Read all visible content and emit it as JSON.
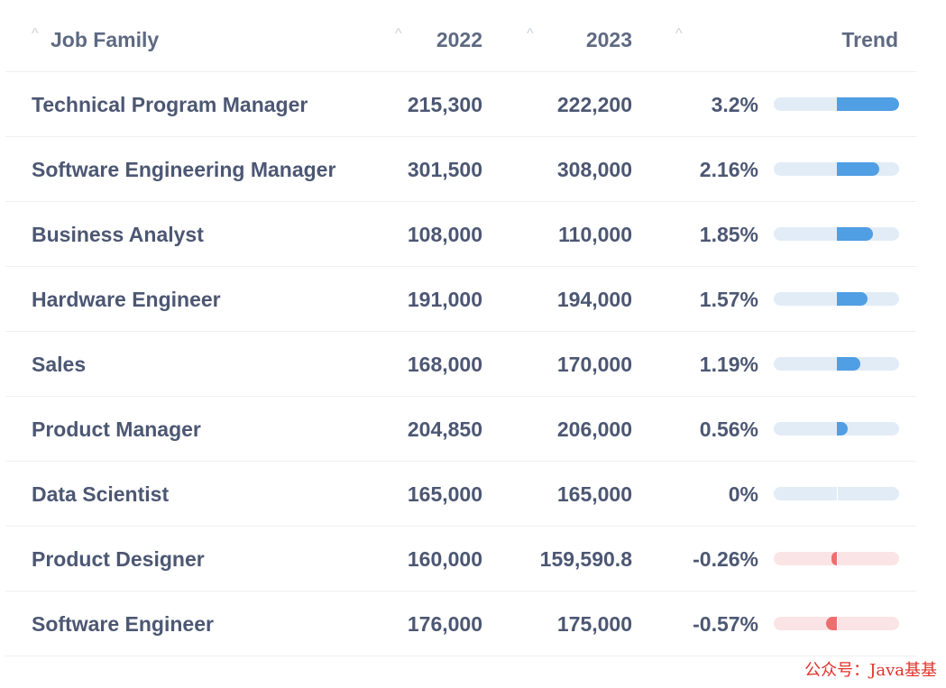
{
  "table": {
    "columns": {
      "job_family": "Job Family",
      "y2022": "2022",
      "y2023": "2023",
      "trend": "Trend"
    },
    "rows": [
      {
        "job": "Technical Program Manager",
        "v2022": "215,300",
        "v2023": "222,200",
        "pct": "3.2%",
        "trend": 3.2
      },
      {
        "job": "Software Engineering Manager",
        "v2022": "301,500",
        "v2023": "308,000",
        "pct": "2.16%",
        "trend": 2.16
      },
      {
        "job": "Business Analyst",
        "v2022": "108,000",
        "v2023": "110,000",
        "pct": "1.85%",
        "trend": 1.85
      },
      {
        "job": "Hardware Engineer",
        "v2022": "191,000",
        "v2023": "194,000",
        "pct": "1.57%",
        "trend": 1.57
      },
      {
        "job": "Sales",
        "v2022": "168,000",
        "v2023": "170,000",
        "pct": "1.19%",
        "trend": 1.19
      },
      {
        "job": "Product Manager",
        "v2022": "204,850",
        "v2023": "206,000",
        "pct": "0.56%",
        "trend": 0.56
      },
      {
        "job": "Data Scientist",
        "v2022": "165,000",
        "v2023": "165,000",
        "pct": "0%",
        "trend": 0
      },
      {
        "job": "Product Designer",
        "v2022": "160,000",
        "v2023": "159,590.8",
        "pct": "-0.26%",
        "trend": -0.26
      },
      {
        "job": "Software Engineer",
        "v2022": "176,000",
        "v2023": "175,000",
        "pct": "-0.57%",
        "trend": -0.57
      }
    ],
    "trend_max": 3.2
  },
  "colors": {
    "positive_bar": "#509ee3",
    "positive_track": "#e2ecf7",
    "negative_bar": "#ed6e6e",
    "negative_track": "#fbe4e5"
  },
  "watermark": "公众号：Java基基"
}
